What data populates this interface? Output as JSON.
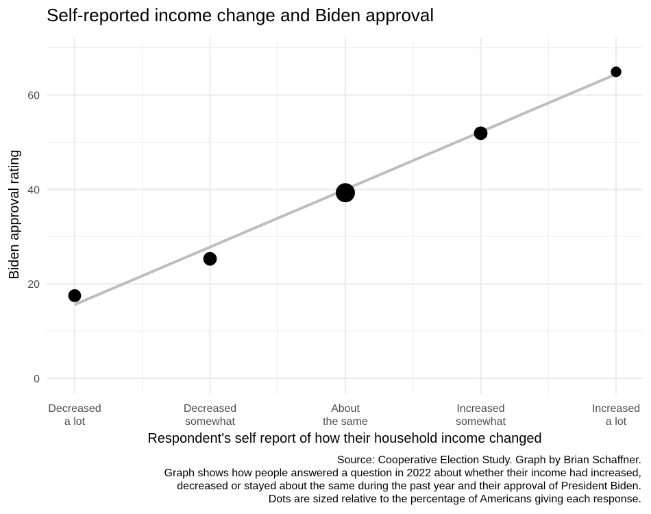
{
  "chart_data": {
    "type": "scatter",
    "title": "Self-reported income change and Biden approval",
    "xlabel": "Respondent's self report of how their household income changed",
    "ylabel": "Biden approval rating",
    "categories": [
      [
        "Decreased",
        "a lot"
      ],
      [
        "Decreased",
        "somewhat"
      ],
      [
        "About",
        "the same"
      ],
      [
        "Increased",
        "somewhat"
      ],
      [
        "Increased",
        "a lot"
      ]
    ],
    "series": [
      {
        "values": [
          17.5,
          25.3,
          39.3,
          51.9,
          64.9
        ],
        "relative_size": [
          0.45,
          0.5,
          1.0,
          0.5,
          0.3
        ]
      }
    ],
    "trend_line": {
      "start": 15.6,
      "end": 64.4,
      "color": "#bebebe"
    },
    "y_ticks": [
      0,
      20,
      40,
      60
    ],
    "ylim": [
      -3,
      71
    ],
    "grid": true,
    "legend": "none",
    "caption": [
      "Source: Cooperative Election Study. Graph by Brian Schaffner.",
      "Graph shows how people answered a question in 2022 about whether their income had increased,",
      "decreased or stayed about the same during the past year and their approval of President Biden.",
      "Dots are sized relative to the percentage of Americans giving each response."
    ],
    "colors": {
      "point": "#000000",
      "grid": "#ebebeb",
      "tick_text": "#4d4d4d"
    }
  }
}
